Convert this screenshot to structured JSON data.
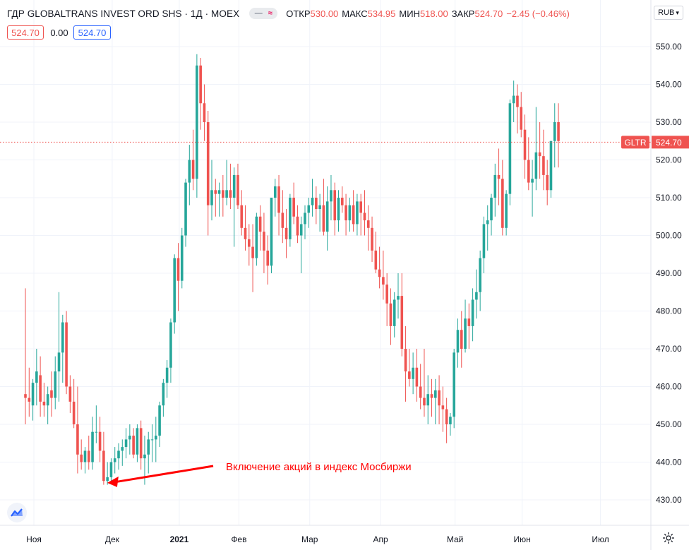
{
  "header": {
    "title": "ГДР GLOBALTRANS INVEST ORD SHS · 1Д · MOEX",
    "stats": [
      {
        "label": "ОТКР",
        "value": "530.00"
      },
      {
        "label": "МАКС",
        "value": "534.95"
      },
      {
        "label": "МИН",
        "value": "518.00"
      },
      {
        "label": "ЗАКР",
        "value": "524.70"
      },
      {
        "label": "",
        "value": "−2.45 (−0.46%)"
      }
    ],
    "value_boxes": [
      "524.70",
      "0.00",
      "524.70"
    ]
  },
  "toolbar": {
    "currency": "RUB",
    "currency_caret": "▾"
  },
  "colors": {
    "up": "#26a69a",
    "down": "#ef5350",
    "grid": "#f0f3fa",
    "text": "#131722",
    "annotation": "#ff0000"
  },
  "icons": {
    "logo": "tradingview-logo-icon",
    "settings": "gear-icon",
    "indicator": "wave-icon"
  },
  "annotation": {
    "text": "Включение акций в индекс Мосбиржи"
  },
  "chart_data": {
    "type": "candlestick",
    "symbol": "GLTR",
    "last_price": 524.7,
    "ylim": [
      425,
      555
    ],
    "y_ticks": [
      "430.00",
      "440.00",
      "450.00",
      "460.00",
      "470.00",
      "480.00",
      "490.00",
      "500.00",
      "510.00",
      "520.00",
      "530.00",
      "540.00",
      "550.00"
    ],
    "x_ticks": [
      {
        "label": "Ноя",
        "index": 0
      },
      {
        "label": "Дек",
        "index": 21
      },
      {
        "label": "2021",
        "index": 39
      },
      {
        "label": "Фев",
        "index": 55
      },
      {
        "label": "Мар",
        "index": 74
      },
      {
        "label": "Апр",
        "index": 93
      },
      {
        "label": "Май",
        "index": 113
      },
      {
        "label": "Июн",
        "index": 131
      },
      {
        "label": "Июл",
        "index": 152
      }
    ],
    "candles": [
      [
        458,
        486,
        450,
        457
      ],
      [
        457,
        465,
        452,
        456
      ],
      [
        455,
        462,
        451,
        461
      ],
      [
        461,
        470,
        455,
        464
      ],
      [
        463,
        468,
        452,
        456
      ],
      [
        456,
        461,
        452,
        455
      ],
      [
        455,
        460,
        450,
        458
      ],
      [
        459,
        464,
        452,
        457
      ],
      [
        457,
        468,
        454,
        464
      ],
      [
        464,
        485,
        456,
        469
      ],
      [
        469,
        479,
        461,
        477
      ],
      [
        477,
        480,
        458,
        460
      ],
      [
        460,
        463,
        453,
        456
      ],
      [
        456,
        462,
        449,
        450
      ],
      [
        450,
        460,
        437,
        442
      ],
      [
        442,
        446,
        438,
        440
      ],
      [
        440,
        444,
        437,
        443
      ],
      [
        443,
        447,
        438,
        440
      ],
      [
        440,
        452,
        438,
        448
      ],
      [
        448,
        455,
        445,
        448
      ],
      [
        448,
        452,
        440,
        443
      ],
      [
        443,
        448,
        434,
        435
      ],
      [
        435,
        440,
        434,
        436
      ],
      [
        436,
        441,
        435,
        440
      ],
      [
        440,
        444,
        437,
        441
      ],
      [
        441,
        445,
        438,
        443
      ],
      [
        443,
        446,
        439,
        444
      ],
      [
        444,
        449,
        441,
        446
      ],
      [
        446,
        450,
        442,
        447
      ],
      [
        447,
        449,
        441,
        442
      ],
      [
        442,
        450,
        440,
        449
      ],
      [
        449,
        451,
        438,
        441
      ],
      [
        441,
        447,
        434,
        442
      ],
      [
        442,
        448,
        437,
        446
      ],
      [
        446,
        450,
        440,
        446
      ],
      [
        446,
        452,
        440,
        447
      ],
      [
        447,
        456,
        444,
        455
      ],
      [
        455,
        462,
        452,
        461
      ],
      [
        461,
        467,
        457,
        465
      ],
      [
        465,
        478,
        461,
        477
      ],
      [
        477,
        495,
        474,
        494
      ],
      [
        494,
        498,
        480,
        488
      ],
      [
        488,
        502,
        486,
        500
      ],
      [
        500,
        515,
        497,
        514
      ],
      [
        514,
        524,
        508,
        520
      ],
      [
        520,
        528,
        512,
        515
      ],
      [
        515,
        548,
        510,
        545
      ],
      [
        545,
        547,
        528,
        535
      ],
      [
        535,
        540,
        525,
        530
      ],
      [
        530,
        533,
        500,
        508
      ],
      [
        508,
        520,
        504,
        512
      ],
      [
        512,
        515,
        505,
        511
      ],
      [
        511,
        514,
        505,
        512
      ],
      [
        512,
        516,
        505,
        510
      ],
      [
        510,
        520,
        508,
        512
      ],
      [
        512,
        519,
        507,
        510
      ],
      [
        510,
        518,
        497,
        516
      ],
      [
        516,
        519,
        507,
        508
      ],
      [
        508,
        512,
        500,
        502
      ],
      [
        502,
        508,
        496,
        499
      ],
      [
        499,
        503,
        492,
        497
      ],
      [
        497,
        503,
        485,
        494
      ],
      [
        494,
        506,
        492,
        505
      ],
      [
        505,
        508,
        496,
        501
      ],
      [
        501,
        506,
        490,
        496
      ],
      [
        496,
        500,
        487,
        492
      ],
      [
        492,
        510,
        490,
        510
      ],
      [
        510,
        515,
        505,
        513
      ],
      [
        513,
        516,
        500,
        506
      ],
      [
        506,
        512,
        498,
        502
      ],
      [
        502,
        507,
        494,
        499
      ],
      [
        499,
        511,
        497,
        510
      ],
      [
        510,
        514,
        503,
        505
      ],
      [
        505,
        508,
        498,
        500
      ],
      [
        500,
        505,
        490,
        503
      ],
      [
        503,
        508,
        499,
        506
      ],
      [
        506,
        510,
        502,
        508
      ],
      [
        508,
        515,
        505,
        510
      ],
      [
        510,
        513,
        503,
        507
      ],
      [
        507,
        511,
        501,
        508
      ],
      [
        508,
        515,
        500,
        501
      ],
      [
        501,
        513,
        496,
        509
      ],
      [
        509,
        516,
        504,
        512
      ],
      [
        512,
        514,
        500,
        504
      ],
      [
        504,
        512,
        501,
        510
      ],
      [
        510,
        513,
        506,
        508
      ],
      [
        508,
        511,
        500,
        504
      ],
      [
        504,
        510,
        501,
        508
      ],
      [
        508,
        512,
        501,
        503
      ],
      [
        503,
        511,
        500,
        509
      ],
      [
        509,
        511,
        500,
        506
      ],
      [
        506,
        512,
        500,
        504
      ],
      [
        504,
        508,
        496,
        502
      ],
      [
        502,
        505,
        493,
        496
      ],
      [
        496,
        501,
        490,
        491
      ],
      [
        491,
        497,
        486,
        489
      ],
      [
        489,
        496,
        483,
        487
      ],
      [
        487,
        490,
        476,
        482
      ],
      [
        482,
        486,
        471,
        476
      ],
      [
        476,
        485,
        473,
        483
      ],
      [
        483,
        490,
        478,
        484
      ],
      [
        484,
        490,
        468,
        470
      ],
      [
        470,
        476,
        456,
        464
      ],
      [
        464,
        470,
        460,
        462
      ],
      [
        462,
        469,
        458,
        465
      ],
      [
        465,
        470,
        456,
        460
      ],
      [
        460,
        466,
        454,
        457
      ],
      [
        457,
        470,
        452,
        455
      ],
      [
        455,
        463,
        450,
        458
      ],
      [
        458,
        462,
        452,
        457
      ],
      [
        457,
        462,
        450,
        459
      ],
      [
        459,
        463,
        450,
        455
      ],
      [
        455,
        460,
        448,
        454
      ],
      [
        454,
        457,
        445,
        450
      ],
      [
        450,
        453,
        447,
        452
      ],
      [
        452,
        470,
        449,
        469
      ],
      [
        469,
        478,
        465,
        475
      ],
      [
        475,
        480,
        465,
        470
      ],
      [
        470,
        483,
        469,
        478
      ],
      [
        478,
        482,
        470,
        476
      ],
      [
        476,
        486,
        472,
        483
      ],
      [
        483,
        491,
        478,
        485
      ],
      [
        485,
        496,
        480,
        494
      ],
      [
        494,
        505,
        490,
        503
      ],
      [
        503,
        508,
        496,
        504
      ],
      [
        504,
        511,
        500,
        510
      ],
      [
        510,
        519,
        505,
        516
      ],
      [
        516,
        523,
        508,
        515
      ],
      [
        515,
        520,
        500,
        502
      ],
      [
        502,
        512,
        500,
        511
      ],
      [
        511,
        536,
        508,
        535
      ],
      [
        535,
        541,
        530,
        537
      ],
      [
        537,
        540,
        527,
        534
      ],
      [
        534,
        538,
        526,
        528
      ],
      [
        528,
        532,
        515,
        520
      ],
      [
        520,
        526,
        512,
        514
      ],
      [
        514,
        520,
        505,
        515
      ],
      [
        515,
        534,
        512,
        522
      ],
      [
        522,
        530,
        515,
        521
      ],
      [
        521,
        528,
        512,
        516
      ],
      [
        516,
        520,
        508,
        512
      ],
      [
        512,
        525,
        510,
        525
      ],
      [
        525,
        535,
        518,
        530
      ],
      [
        530,
        535,
        518,
        525
      ]
    ]
  }
}
